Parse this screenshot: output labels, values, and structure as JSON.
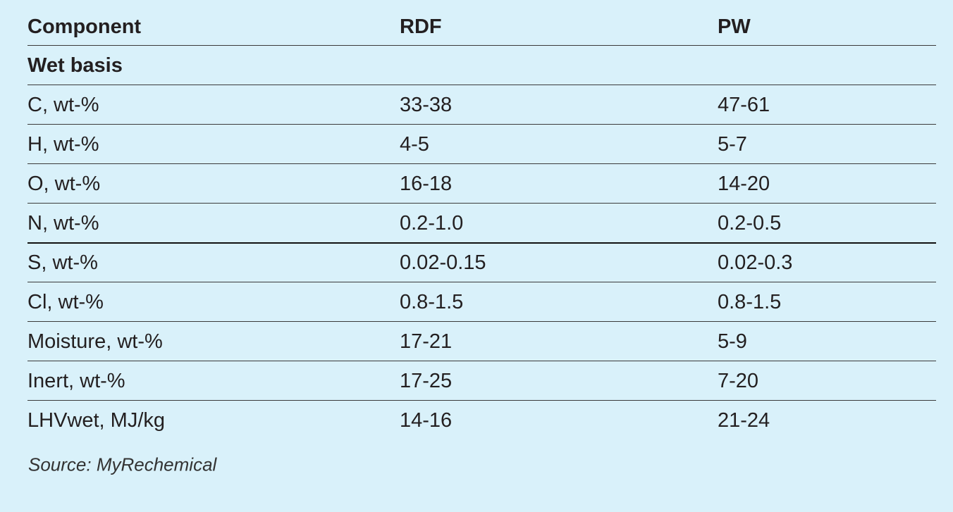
{
  "table": {
    "header": [
      "Component",
      "RDF",
      "PW"
    ],
    "section": "Wet basis",
    "rows": [
      [
        "C, wt-%",
        "33-38",
        "47-61"
      ],
      [
        "H, wt-%",
        "4-5",
        "5-7"
      ],
      [
        "O, wt-%",
        "16-18",
        "14-20"
      ],
      [
        "N, wt-%",
        "0.2-1.0",
        "0.2-0.5"
      ],
      [
        "S, wt-%",
        "0.02-0.15",
        "0.02-0.3"
      ],
      [
        "Cl, wt-%",
        "0.8-1.5",
        "0.8-1.5"
      ],
      [
        "Moisture, wt-%",
        "17-21",
        "5-9"
      ],
      [
        "Inert, wt-%",
        "17-25",
        "7-20"
      ],
      [
        "LHVwet, MJ/kg",
        "14-16",
        "21-24"
      ]
    ]
  },
  "source": "Source: MyRechemical"
}
